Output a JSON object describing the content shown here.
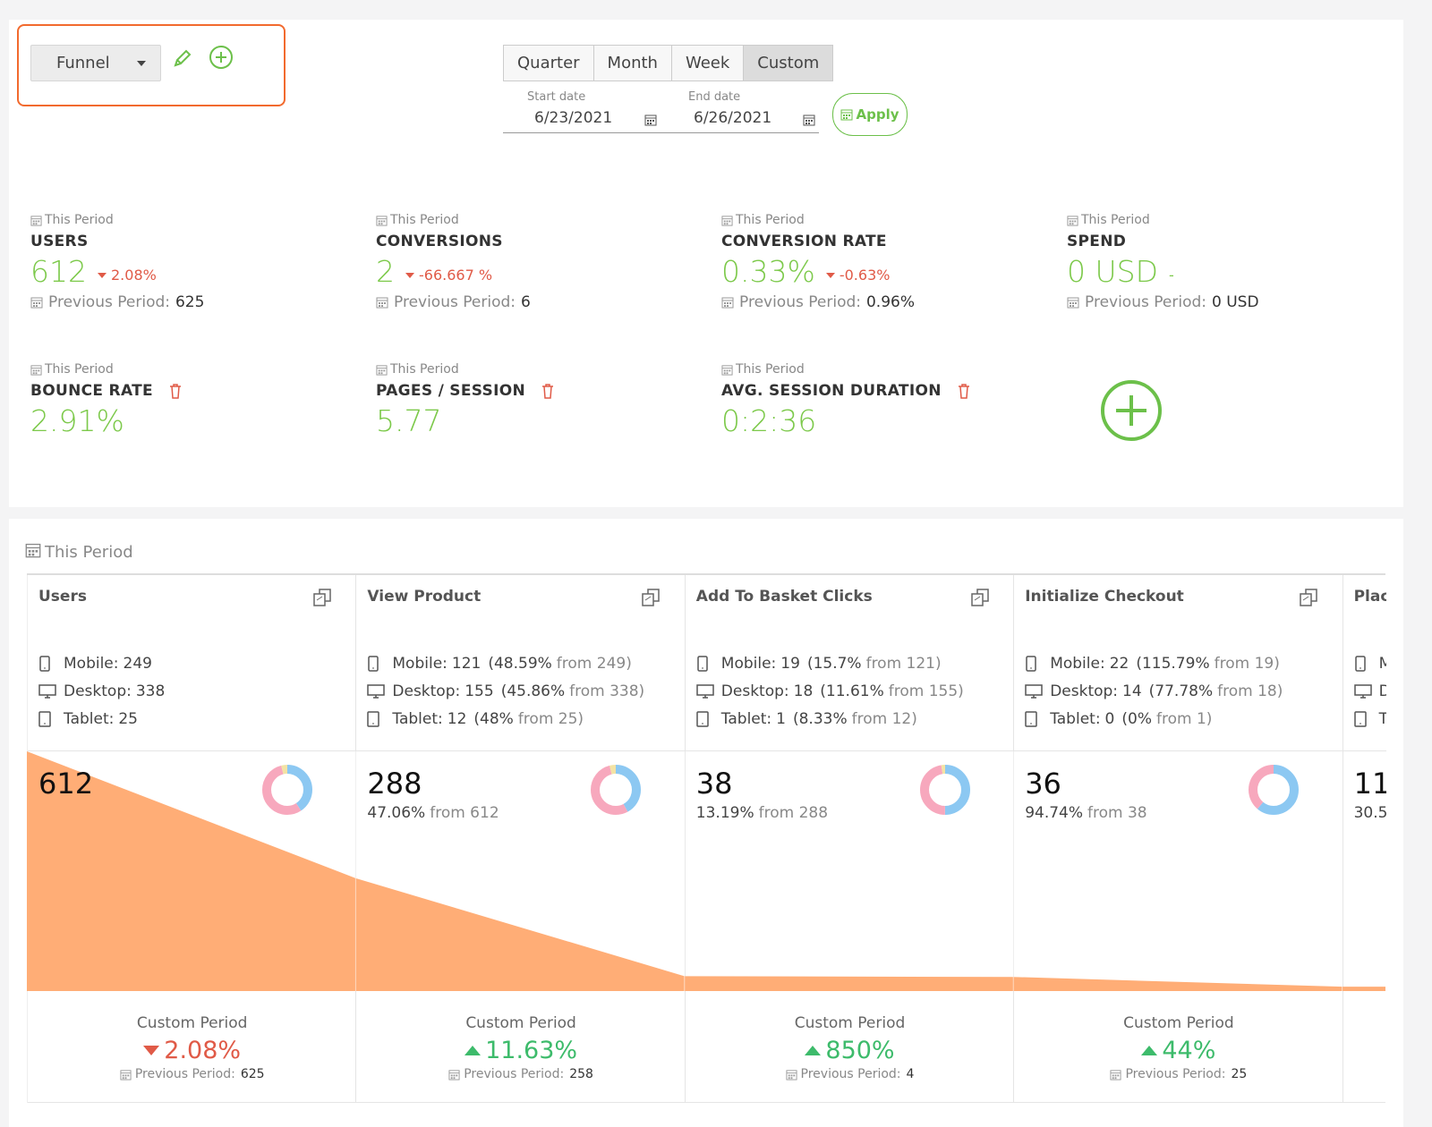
{
  "toolbar": {
    "view": "Funnel",
    "periods": [
      {
        "label": "Quarter",
        "selected": false
      },
      {
        "label": "Month",
        "selected": false
      },
      {
        "label": "Week",
        "selected": false
      },
      {
        "label": "Custom",
        "selected": true
      }
    ],
    "start_date_label": "Start date",
    "start_date": "6/23/2021",
    "end_date_label": "End date",
    "end_date": "6/26/2021",
    "apply": "Apply"
  },
  "kpis": [
    {
      "period": "This Period",
      "title": "USERS",
      "value": "612",
      "change": "2.08%",
      "direction": "down",
      "previous_label": "Previous Period:",
      "previous": "625",
      "deletable": false
    },
    {
      "period": "This Period",
      "title": "CONVERSIONS",
      "value": "2",
      "change": "-66.667 %",
      "direction": "down",
      "previous_label": "Previous Period:",
      "previous": "6",
      "deletable": false
    },
    {
      "period": "This Period",
      "title": "CONVERSION RATE",
      "value": "0.33%",
      "change": "-0.63%",
      "direction": "down",
      "previous_label": "Previous Period:",
      "previous": "0.96%",
      "deletable": false
    },
    {
      "period": "This Period",
      "title": "SPEND",
      "value": "0 USD",
      "change": "-",
      "direction": null,
      "previous_label": "Previous Period:",
      "previous": "0 USD",
      "deletable": false
    },
    {
      "period": "This Period",
      "title": "BOUNCE RATE",
      "value": "2.91%",
      "deletable": true
    },
    {
      "period": "This Period",
      "title": "PAGES / SESSION",
      "value": "5.77",
      "deletable": true
    },
    {
      "period": "This Period",
      "title": "AVG. SESSION DURATION",
      "value": "0:2:36",
      "deletable": true
    }
  ],
  "funnel": {
    "period": "This Period",
    "area_color": "#ffad76",
    "device_colors": [
      "#8cc8f2",
      "#f7a8bd",
      "#f3e3a4"
    ],
    "steps": [
      {
        "name": "Users",
        "devices": [
          {
            "label": "Mobile:",
            "value": 249
          },
          {
            "label": "Desktop:",
            "value": 338
          },
          {
            "label": "Tablet:",
            "value": 25
          }
        ],
        "value": 612,
        "footer": {
          "label": "Custom Period",
          "change": "2.08%",
          "direction": "down",
          "previous_label": "Previous Period:",
          "previous": "625"
        }
      },
      {
        "name": "View Product",
        "devices": [
          {
            "label": "Mobile:",
            "value": 121,
            "rate": "(48.59%",
            "from": "from 249)"
          },
          {
            "label": "Desktop:",
            "value": 155,
            "rate": "(45.86%",
            "from": "from 338)"
          },
          {
            "label": "Tablet:",
            "value": 12,
            "rate": "(48%",
            "from": "from 25)"
          }
        ],
        "value": 288,
        "rate": "47.06%",
        "from": "from 612",
        "footer": {
          "label": "Custom Period",
          "change": "11.63%",
          "direction": "up",
          "previous_label": "Previous Period:",
          "previous": "258"
        }
      },
      {
        "name": "Add To Basket Clicks",
        "devices": [
          {
            "label": "Mobile:",
            "value": 19,
            "rate": "(15.7%",
            "from": "from 121)"
          },
          {
            "label": "Desktop:",
            "value": 18,
            "rate": "(11.61%",
            "from": "from 155)"
          },
          {
            "label": "Tablet:",
            "value": 1,
            "rate": "(8.33%",
            "from": "from 12)"
          }
        ],
        "value": 38,
        "rate": "13.19%",
        "from": "from 288",
        "footer": {
          "label": "Custom Period",
          "change": "850%",
          "direction": "up",
          "previous_label": "Previous Period:",
          "previous": "4"
        }
      },
      {
        "name": "Initialize Checkout",
        "devices": [
          {
            "label": "Mobile:",
            "value": 22,
            "rate": "(115.79%",
            "from": "from 19)"
          },
          {
            "label": "Desktop:",
            "value": 14,
            "rate": "(77.78%",
            "from": "from 18)"
          },
          {
            "label": "Tablet:",
            "value": 0,
            "rate": "(0%",
            "from": "from 1)"
          }
        ],
        "value": 36,
        "rate": "94.74%",
        "from": "from 38",
        "footer": {
          "label": "Custom Period",
          "change": "44%",
          "direction": "up",
          "previous_label": "Previous Period:",
          "previous": "25"
        }
      },
      {
        "name": "Plac",
        "devices": [
          {
            "label": "M"
          },
          {
            "label": "D"
          },
          {
            "label": "T"
          }
        ],
        "value": 11,
        "rate": "30.5"
      }
    ]
  }
}
